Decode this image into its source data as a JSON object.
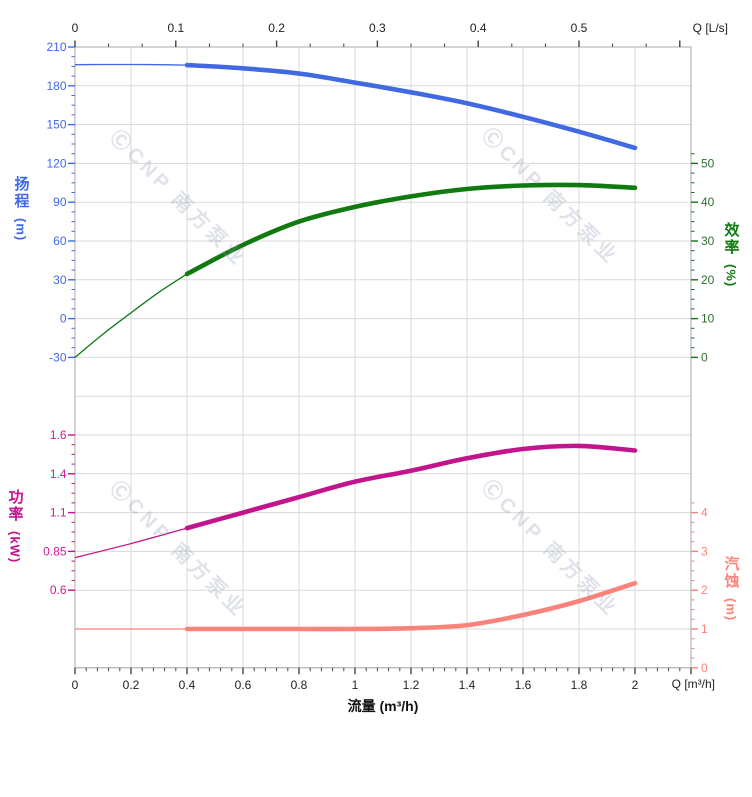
{
  "watermark_text": "ⒸCNP 南方泵业",
  "chart_data": {
    "type": "line",
    "description": "pump performance curves: head / efficiency / power / NPSH versus flow",
    "grid": true,
    "colors": {
      "background": "#FFFFFF",
      "grid": "#DADADA",
      "axis_border": "#A8A8A8",
      "x_tick": "#444444",
      "x_label": "#222222",
      "head": "#4169E1",
      "efficiency": "#107A10",
      "efficiency_tick_label": "#2F6F2F",
      "power": "#C2148C",
      "power_tick_label": "#D6179A",
      "npsh": "#F9837A"
    },
    "x_axis_bottom": {
      "label": "流量 (m³/h)",
      "unit_label": "Q [m³/h]",
      "tick_values": [
        0,
        0.2,
        0.4,
        0.6,
        0.8,
        1,
        1.2,
        1.4,
        1.6,
        1.8,
        2
      ],
      "tick_labels": [
        "0",
        "0.2",
        "0.4",
        "0.6",
        "0.8",
        "1",
        "1.2",
        "1.4",
        "1.6",
        "1.8",
        "2"
      ],
      "range": [
        0,
        2.2
      ]
    },
    "x_axis_top": {
      "unit_label": "Q [L/s]",
      "tick_values": [
        0,
        0.1,
        0.2,
        0.3,
        0.4,
        0.5
      ],
      "tick_labels": [
        "0",
        "0.1",
        "0.2",
        "0.3",
        "0.4",
        "0.5"
      ],
      "range": [
        0,
        0.611
      ]
    },
    "y_axes": {
      "head": {
        "label": "扬程",
        "unit": "(m)",
        "tick_values": [
          210,
          180,
          150,
          120,
          90,
          60,
          30,
          0,
          -30
        ],
        "tick_labels": [
          "210",
          "180",
          "150",
          "120",
          "90",
          "60",
          "30",
          "0",
          "-30"
        ],
        "range": [
          -30,
          210
        ]
      },
      "efficiency": {
        "label": "效率",
        "unit": "(%)",
        "tick_values": [
          50,
          40,
          30,
          20,
          10,
          0
        ],
        "tick_labels": [
          "50",
          "40",
          "30",
          "20",
          "10",
          "0"
        ],
        "range": [
          0,
          50
        ]
      },
      "power": {
        "label": "功率",
        "unit": "(kW)",
        "tick_values": [
          1.6,
          1.35,
          1.1,
          0.85,
          0.6
        ],
        "tick_labels": [
          "1.6",
          "1.4",
          "1.1",
          "0.85",
          "0.6"
        ],
        "range": [
          0.6,
          1.6
        ]
      },
      "npsh": {
        "label": "汽蚀",
        "unit": "(m)",
        "tick_values": [
          4,
          3,
          2,
          1,
          0
        ],
        "tick_labels": [
          "4",
          "3",
          "2",
          "1",
          "0"
        ],
        "range": [
          0,
          4
        ]
      }
    },
    "series": [
      {
        "name": "head",
        "axis": "head",
        "color": "#4169E1",
        "thin_points": [
          [
            0,
            196.3
          ],
          [
            0.1,
            196.5
          ],
          [
            0.2,
            196.5
          ],
          [
            0.3,
            196.3
          ],
          [
            0.4,
            196.0
          ]
        ],
        "thick_points": [
          [
            0.4,
            196.0
          ],
          [
            0.6,
            193.5
          ],
          [
            0.8,
            189.5
          ],
          [
            1.0,
            182.5
          ],
          [
            1.2,
            175.0
          ],
          [
            1.4,
            166.5
          ],
          [
            1.6,
            156.0
          ],
          [
            1.8,
            144.5
          ],
          [
            2.0,
            132.0
          ]
        ]
      },
      {
        "name": "efficiency",
        "axis": "efficiency",
        "color": "#107A10",
        "thin_points": [
          [
            0,
            0
          ],
          [
            0.1,
            6.0
          ],
          [
            0.2,
            11.5
          ],
          [
            0.3,
            16.8
          ],
          [
            0.4,
            21.5
          ]
        ],
        "thick_points": [
          [
            0.4,
            21.5
          ],
          [
            0.6,
            29.0
          ],
          [
            0.8,
            35.0
          ],
          [
            1.0,
            38.8
          ],
          [
            1.2,
            41.5
          ],
          [
            1.4,
            43.4
          ],
          [
            1.6,
            44.3
          ],
          [
            1.8,
            44.4
          ],
          [
            2.0,
            43.7
          ]
        ]
      },
      {
        "name": "power",
        "axis": "power",
        "color": "#C2148C",
        "thin_points": [
          [
            0,
            0.81
          ],
          [
            0.2,
            0.9
          ],
          [
            0.4,
            1.0
          ]
        ],
        "thick_points": [
          [
            0.4,
            1.0
          ],
          [
            0.6,
            1.1
          ],
          [
            0.8,
            1.2
          ],
          [
            1.0,
            1.3
          ],
          [
            1.2,
            1.37
          ],
          [
            1.4,
            1.45
          ],
          [
            1.6,
            1.51
          ],
          [
            1.8,
            1.53
          ],
          [
            2.0,
            1.5
          ]
        ]
      },
      {
        "name": "npsh",
        "axis": "npsh",
        "color": "#F9837A",
        "thin_points": [
          [
            0,
            1.0
          ],
          [
            0.2,
            1.0
          ],
          [
            0.4,
            1.0
          ]
        ],
        "thick_points": [
          [
            0.4,
            1.0
          ],
          [
            0.6,
            1.0
          ],
          [
            0.8,
            1.0
          ],
          [
            1.0,
            1.0
          ],
          [
            1.2,
            1.02
          ],
          [
            1.4,
            1.1
          ],
          [
            1.6,
            1.36
          ],
          [
            1.8,
            1.72
          ],
          [
            2.0,
            2.18
          ]
        ]
      }
    ]
  }
}
